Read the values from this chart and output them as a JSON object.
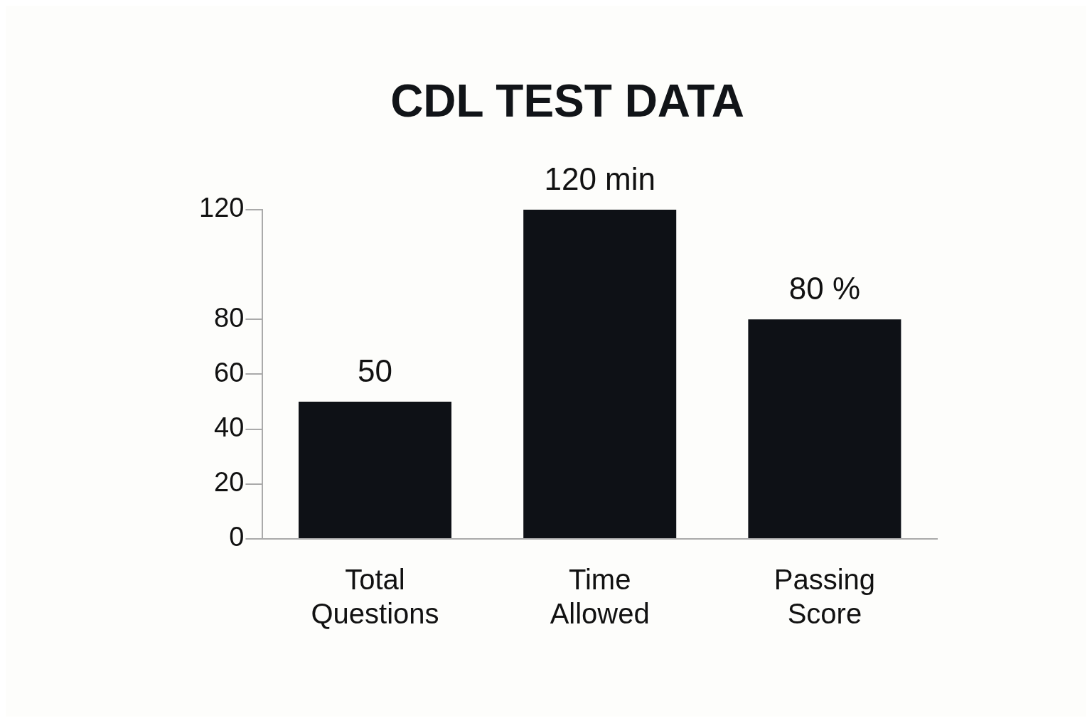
{
  "chart_data": {
    "type": "bar",
    "title": "CDL TEST DATA",
    "categories": [
      "Total Questions",
      "Time Allowed",
      "Passing Score"
    ],
    "values": [
      50,
      120,
      80
    ],
    "color": "#0e1116",
    "value_labels": [
      "50",
      "120 min",
      "80 %"
    ],
    "ylim": [
      0,
      120
    ],
    "yticks": [
      0,
      20,
      40,
      60,
      80,
      120
    ],
    "grid": false,
    "legend": false
  }
}
